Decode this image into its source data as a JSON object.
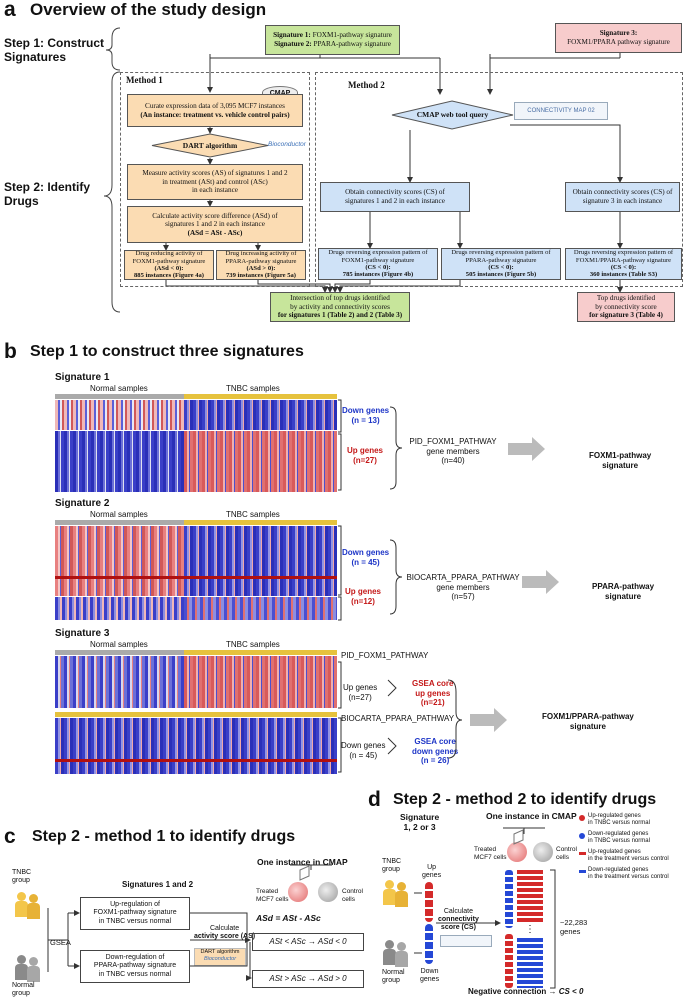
{
  "panel_a": {
    "letter": "a",
    "title": "Overview of the study design",
    "step1_label": "Step 1: Construct\nSignatures",
    "step2_label": "Step 2: Identify\nDrugs",
    "sig12_box": {
      "line1_bold": "Signature 1:",
      "line1": " FOXM1-pathway signature",
      "line2_bold": "Signature 2:",
      "line2": " PPARA-pathway signature"
    },
    "sig3_box": {
      "line1_bold": "Signature 3:",
      "line2": "FOXM1/PPARA pathway signature"
    },
    "method1_label": "Method 1",
    "method2_label": "Method 2",
    "cmap_label": "CMAP",
    "curate_box": {
      "line1": "Curate expression data of 3,095 MCF7 instances",
      "line2": "(An instance: treatment vs. vehicle control pairs)"
    },
    "dart_label": "DART algorithm",
    "bioconductor_label": "Bioconductor",
    "measure_box": {
      "line1": "Measure activity scores (AS) of signatures 1 and 2",
      "line2": "in treatment (ASt) and control (ASc)",
      "line3": "in each instance"
    },
    "calc_box": {
      "line1": "Calculate activity score difference (ASd) of",
      "line2": "signatures 1 and 2 in each instance",
      "line3": "(ASd = ASt - ASc)"
    },
    "reduce_box": {
      "line1": "Drug reducing activity of",
      "line2": "FOXM1-pathway signature",
      "line3": "(ASd < 0):",
      "line4": "885 instances (Figure 4a)"
    },
    "increase_box": {
      "line1": "Drug increasing activity of",
      "line2": "PPARA-pathway signature",
      "line3": "(ASd > 0):",
      "line4": "739 instances (Figure 5a)"
    },
    "cmap_query_label": "CMAP web tool query",
    "connectivity_map_label": "CONNECTIVITY MAP 02",
    "obtain12_box": {
      "line1": "Obtain connectivity scores (CS) of",
      "line2": "signatures 1 and 2 in each instance"
    },
    "obtain3_box": {
      "line1": "Obtain connectivity scores (CS) of",
      "line2": "signature 3 in each instance"
    },
    "rev_foxm1_box": {
      "line1": "Drugs reversing expression pattern of",
      "line2": "FOXM1-pathway signature",
      "line3": "(CS < 0):",
      "line4": "785 instances (Figure 4b)"
    },
    "rev_ppara_box": {
      "line1": "Drugs reversing expression pattern of",
      "line2": "PPARA-pathway signature",
      "line3": "(CS < 0):",
      "line4": "505 instances (Figure 5b)"
    },
    "rev_both_box": {
      "line1": "Drugs reversing expression pattern of",
      "line2": "FOXM1/PPARA-pathway signature",
      "line3": "(CS < 0):",
      "line4": "360 instances (Table S3)"
    },
    "intersection_box": {
      "line1": "Intersection of top drugs identified",
      "line2": "by activity and connectivity scores",
      "line3": "for signatures 1 (Table 2) and 2 (Table 3)"
    },
    "top_drugs_box": {
      "line1": "Top drugs identified",
      "line2": "by connectivity score",
      "line3": "for signature 3 (Table 4)"
    }
  },
  "panel_b": {
    "letter": "b",
    "title": "Step 1 to construct three signatures",
    "signatures": [
      {
        "title": "Signature 1",
        "normal": "Normal samples",
        "tnbc": "TNBC samples",
        "down": "Down genes",
        "down_n": "(n = 13)",
        "up": "Up genes",
        "up_n": "(n=27)",
        "members_line1": "PID_FOXM1_PATHWAY",
        "members_line2": "gene members",
        "members_line3": "(n=40)",
        "result_line1": "FOXM1-pathway",
        "result_line2": "signature"
      },
      {
        "title": "Signature 2",
        "normal": "Normal samples",
        "tnbc": "TNBC samples",
        "down": "Down genes",
        "down_n": "(n = 45)",
        "up": "Up genes",
        "up_n": "(n=12)",
        "members_line1": "BIOCARTA_PPARA_PATHWAY",
        "members_line2": "gene members",
        "members_line3": "(n=57)",
        "result_line1": "PPARA-pathway",
        "result_line2": "signature"
      },
      {
        "title": "Signature 3",
        "normal": "Normal samples",
        "tnbc": "TNBC samples",
        "pathway1": "PID_FOXM1_PATHWAY",
        "up": "Up genes",
        "up_n": "(n=27)",
        "gsea_up1": "GSEA core",
        "gsea_up2": "up genes",
        "gsea_up3": "(n=21)",
        "pathway2": "BIOCARTA_PPARA_PATHWAY",
        "down": "Down genes",
        "down_n": "(n = 45)",
        "gsea_down1": "GSEA core",
        "gsea_down2": "down genes",
        "gsea_down3": "(n = 26)",
        "result_line1": "FOXM1/PPARA-pathway",
        "result_line2": "signature"
      }
    ]
  },
  "panel_c": {
    "letter": "c",
    "title": "Step 2 - method 1 to identify drugs",
    "tnbc_group": "TNBC\ngroup",
    "normal_group": "Normal\ngroup",
    "gsea": "GSEA",
    "signatures_label": "Signatures 1 and  2",
    "upreg_box": {
      "line1": "Up-regulation of",
      "line2": "FOXM1-pathway signature",
      "line3": "in TNBC versus normal"
    },
    "downreg_box": {
      "line1": "Down-regulation of",
      "line2": "PPARA-pathway signature",
      "line3": "in TNBC versus normal"
    },
    "calculate": "Calculate",
    "activity_score": "activity score (AS)",
    "dart": "DART algorithm",
    "bioconductor": "Bioconductor",
    "one_instance": "One instance in CMAP",
    "treated": "Treated\nMCF7 cells",
    "control": "Control\ncells",
    "asd_eq": "ASd  =  ASt  -  ASc",
    "rule1": "ASt  <  ASc  →  ASd < 0",
    "rule2": "ASt  >  ASc  →  ASd > 0"
  },
  "panel_d": {
    "letter": "d",
    "title": "Step 2 - method 2 to identify drugs",
    "signature_label": "Signature\n1, 2 or 3",
    "one_instance": "One instance in CMAP",
    "treated": "Treated\nMCF7 cells",
    "control": "Control\ncells",
    "tnbc_group": "TNBC\ngroup",
    "normal_group": "Normal\ngroup",
    "up_genes": "Up\ngenes",
    "down_genes": "Down\ngenes",
    "calculate": "Calculate",
    "connectivity": "connectivity",
    "score": "score (CS)",
    "genes_count": "~22,283\ngenes",
    "dots": "⋮",
    "negative": "Negative connection",
    "negative_rel": "→  CS < 0",
    "legend": [
      {
        "label": "Up-regulated genes\nin TNBC versus normal",
        "color": "#d42a2a"
      },
      {
        "label": "Down-regulated genes\nin TNBC versus normal",
        "color": "#2548d6"
      },
      {
        "label": "Up-regulated genes\nin the treatment versus control",
        "color": "#d42a2a"
      },
      {
        "label": "Down-regulated genes\nin the treatment versus control",
        "color": "#2548d6"
      }
    ]
  },
  "colors": {
    "green": "#c7e59b",
    "pink": "#f7cccc",
    "orange": "#fbdcb3",
    "blue": "#cfe2f7",
    "down_blue": "#1d35c7",
    "up_red": "#c41818"
  }
}
